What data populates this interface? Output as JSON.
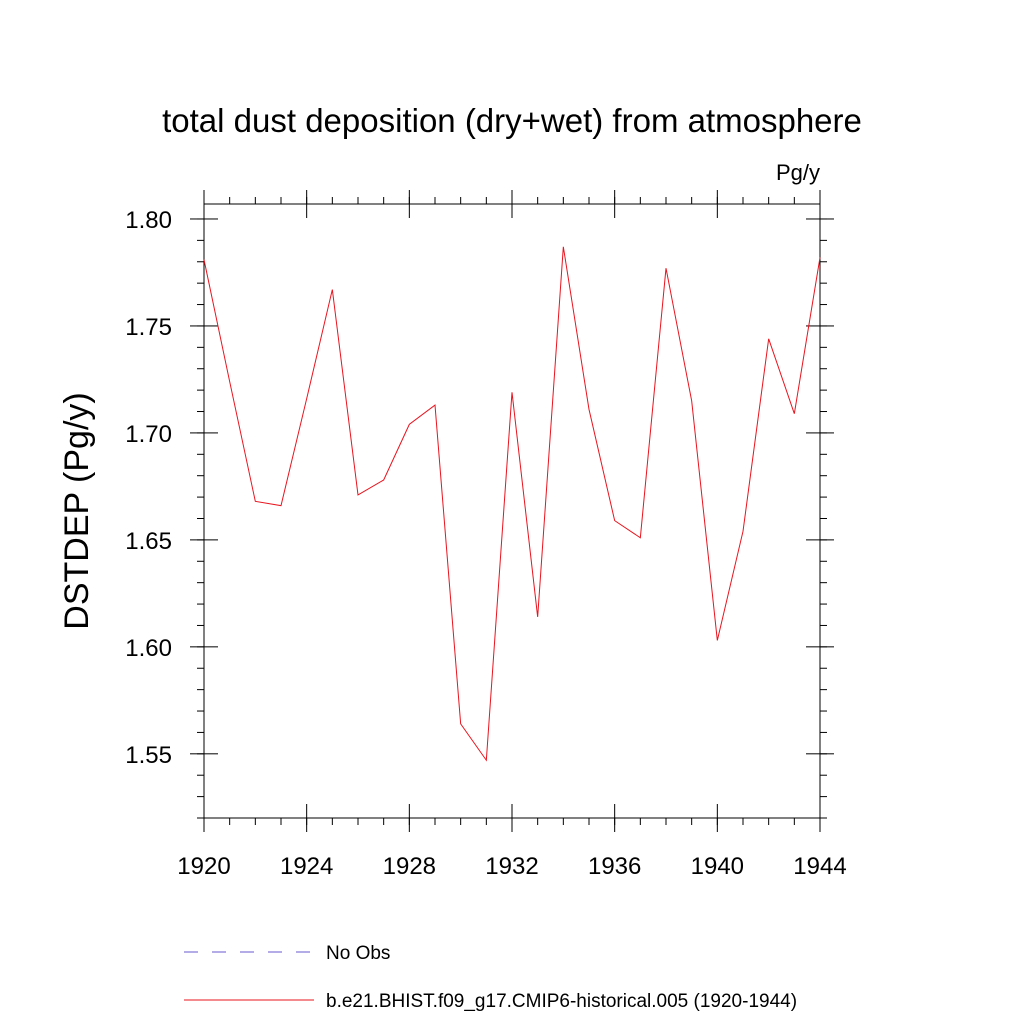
{
  "chart_data": {
    "type": "line",
    "title": "total dust deposition (dry+wet) from atmosphere",
    "units": "Pg/y",
    "xlabel": "",
    "ylabel": "DSTDEP  (Pg/y)",
    "xlim": [
      1920,
      1944
    ],
    "ylim": [
      1.52,
      1.807
    ],
    "x_ticks": [
      1920,
      1924,
      1928,
      1932,
      1936,
      1940,
      1944
    ],
    "x_tick_labels": [
      "1920",
      "1924",
      "1928",
      "1932",
      "1936",
      "1940",
      "1944"
    ],
    "y_ticks": [
      1.55,
      1.6,
      1.65,
      1.7,
      1.75,
      1.8
    ],
    "y_tick_labels": [
      "1.55",
      "1.60",
      "1.65",
      "1.70",
      "1.75",
      "1.80"
    ],
    "x_minor_step": 1,
    "y_minor_step": 0.01,
    "grid": false,
    "series": [
      {
        "name": "b.e21.BHIST.f09_g17.CMIP6-historical.005 (1920-1944)",
        "color": "#e8141e",
        "style": "solid",
        "x": [
          1920,
          1921,
          1922,
          1923,
          1924,
          1925,
          1926,
          1927,
          1928,
          1929,
          1930,
          1931,
          1932,
          1933,
          1934,
          1935,
          1936,
          1937,
          1938,
          1939,
          1940,
          1941,
          1942,
          1943,
          1944
        ],
        "values": [
          1.781,
          1.724,
          1.668,
          1.666,
          1.716,
          1.767,
          1.671,
          1.678,
          1.704,
          1.713,
          1.564,
          1.547,
          1.719,
          1.614,
          1.787,
          1.711,
          1.659,
          1.651,
          1.777,
          1.715,
          1.603,
          1.654,
          1.744,
          1.709,
          1.782
        ]
      }
    ],
    "legend": [
      {
        "label": "No Obs",
        "color": "#6a5acd",
        "style": "dashed"
      },
      {
        "label": "b.e21.BHIST.f09_g17.CMIP6-historical.005 (1920-1944)",
        "color": "#e8141e",
        "style": "solid"
      }
    ],
    "legend_position": "bottom"
  }
}
